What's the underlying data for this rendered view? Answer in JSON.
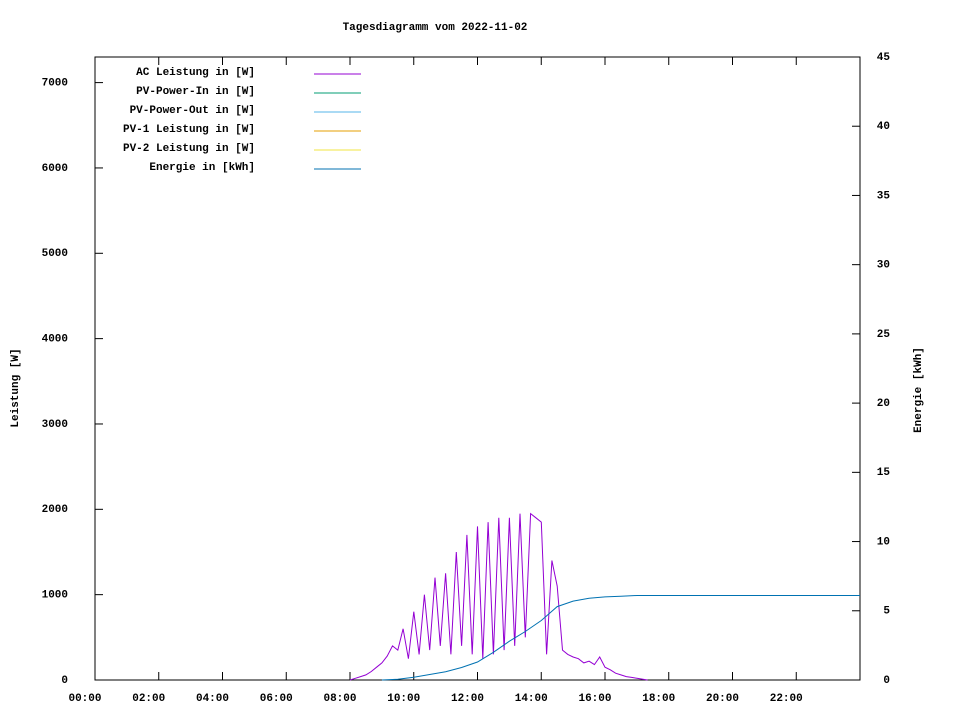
{
  "chart_data": {
    "type": "line",
    "title": "Tagesdiagramm vom 2022-11-02",
    "ylabel": "Leistung [W]",
    "y2label": "Energie [kWh]",
    "xlim": [
      "00:00",
      "24:00"
    ],
    "xticks": [
      "00:00",
      "02:00",
      "04:00",
      "06:00",
      "08:00",
      "10:00",
      "12:00",
      "14:00",
      "16:00",
      "18:00",
      "20:00",
      "22:00"
    ],
    "ylim": [
      0,
      7300
    ],
    "yticks": [
      0,
      1000,
      2000,
      3000,
      4000,
      5000,
      6000,
      7000
    ],
    "y2lim": [
      0,
      45
    ],
    "y2ticks": [
      0,
      5,
      10,
      15,
      20,
      25,
      30,
      35,
      40,
      45
    ],
    "grid": false,
    "legend": "top-left",
    "series": [
      {
        "name": "AC Leistung in [W]",
        "color": "#9400d3",
        "x": [
          "08:00",
          "08:10",
          "08:20",
          "08:30",
          "08:40",
          "08:50",
          "09:00",
          "09:10",
          "09:20",
          "09:30",
          "09:40",
          "09:50",
          "10:00",
          "10:10",
          "10:20",
          "10:30",
          "10:40",
          "10:50",
          "11:00",
          "11:10",
          "11:20",
          "11:30",
          "11:40",
          "11:50",
          "12:00",
          "12:10",
          "12:20",
          "12:30",
          "12:40",
          "12:50",
          "13:00",
          "13:10",
          "13:20",
          "13:30",
          "13:40",
          "13:50",
          "14:00",
          "14:10",
          "14:20",
          "14:30",
          "14:40",
          "14:50",
          "15:00",
          "15:10",
          "15:20",
          "15:30",
          "15:40",
          "15:50",
          "16:00",
          "16:10",
          "16:20",
          "16:30",
          "16:40",
          "16:50",
          "17:00",
          "17:10",
          "17:20"
        ],
        "values": [
          0,
          20,
          40,
          60,
          100,
          150,
          200,
          280,
          400,
          350,
          600,
          250,
          800,
          300,
          1000,
          350,
          1200,
          400,
          1250,
          300,
          1500,
          400,
          1700,
          300,
          1800,
          250,
          1850,
          300,
          1900,
          350,
          1900,
          400,
          1950,
          500,
          1950,
          1900,
          1850,
          300,
          1400,
          1100,
          350,
          300,
          270,
          250,
          200,
          220,
          180,
          270,
          150,
          120,
          80,
          60,
          40,
          30,
          20,
          10,
          0
        ]
      },
      {
        "name": "PV-Power-In in [W]",
        "color": "#009e73",
        "x": [],
        "values": []
      },
      {
        "name": "PV-Power-Out in [W]",
        "color": "#56b4e9",
        "x": [],
        "values": []
      },
      {
        "name": "PV-1 Leistung in [W]",
        "color": "#e69f00",
        "x": [],
        "values": []
      },
      {
        "name": "PV-2 Leistung in [W]",
        "color": "#f0e442",
        "x": [],
        "values": []
      },
      {
        "name": "Energie in [kWh]",
        "color": "#0072b2",
        "axis": "y2",
        "x": [
          "09:00",
          "09:30",
          "10:00",
          "10:30",
          "11:00",
          "11:30",
          "12:00",
          "12:30",
          "13:00",
          "13:30",
          "14:00",
          "14:30",
          "15:00",
          "15:30",
          "16:00",
          "16:30",
          "17:00",
          "24:00"
        ],
        "values": [
          0,
          0.05,
          0.2,
          0.4,
          0.6,
          0.9,
          1.3,
          2.0,
          2.8,
          3.5,
          4.3,
          5.3,
          5.7,
          5.9,
          6.0,
          6.05,
          6.1,
          6.1
        ]
      }
    ]
  }
}
